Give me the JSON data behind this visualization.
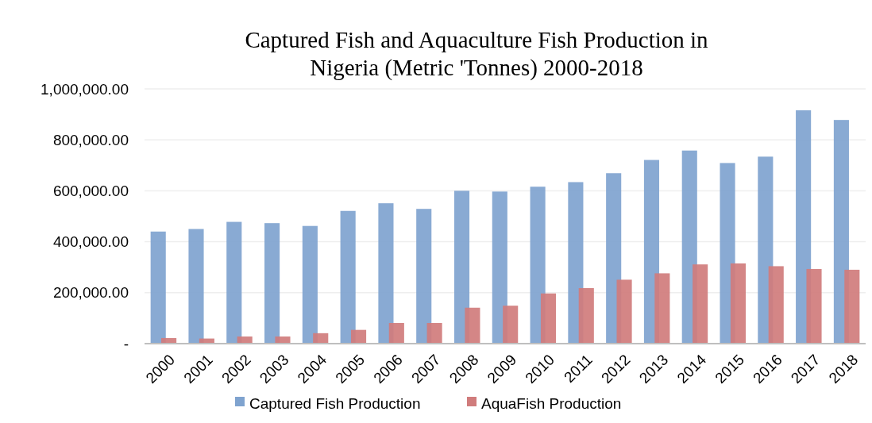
{
  "chart_data": {
    "type": "bar",
    "title": "Captured Fish and Aquaculture Fish Production in Nigeria (Metric 'Tonnes) 2000-2018",
    "categories": [
      "2000",
      "2001",
      "2002",
      "2003",
      "2004",
      "2005",
      "2006",
      "2007",
      "2008",
      "2009",
      "2010",
      "2011",
      "2012",
      "2013",
      "2014",
      "2015",
      "2016",
      "2017",
      "2018"
    ],
    "series": [
      {
        "name": "Captured Fish Production",
        "color": "#7fa3cf",
        "values": [
          440000,
          450000,
          478000,
          473000,
          462000,
          521000,
          551000,
          529000,
          600000,
          597000,
          616000,
          634000,
          669000,
          721000,
          758000,
          709000,
          734000,
          916000,
          878000
        ]
      },
      {
        "name": "AquaFish Production",
        "color": "#d07c7c",
        "values": [
          22000,
          20000,
          28000,
          28000,
          41000,
          54000,
          81000,
          81000,
          141000,
          149000,
          197000,
          218000,
          251000,
          276000,
          311000,
          315000,
          304000,
          293000,
          290000
        ]
      }
    ],
    "ylim": [
      0,
      1000000
    ],
    "yticks": [
      {
        "value": 0,
        "label": "-"
      },
      {
        "value": 200000,
        "label": "200,000.00"
      },
      {
        "value": 400000,
        "label": "400,000.00"
      },
      {
        "value": 600000,
        "label": "600,000.00"
      },
      {
        "value": 800000,
        "label": "800,000.00"
      },
      {
        "value": 1000000,
        "label": "1,000,000.00"
      }
    ],
    "grid": "y",
    "legend": "bottom"
  }
}
